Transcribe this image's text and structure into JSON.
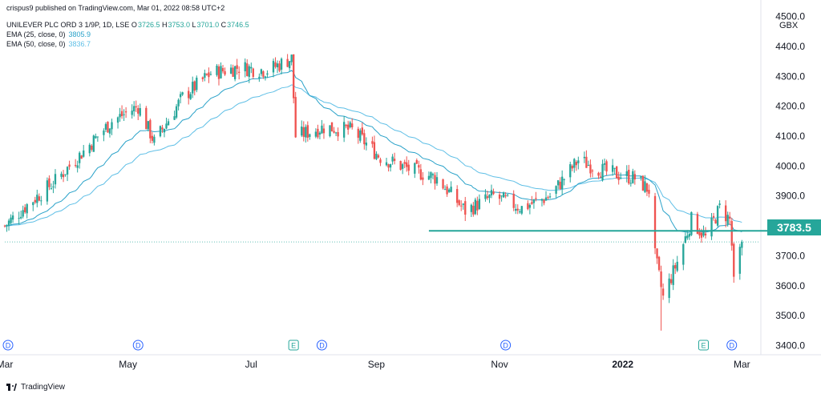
{
  "header": {
    "publisher": "crispus9 published on TradingView.com, Mar 01, 2022 08:58 UTC+2",
    "symbol": "UNILEVER PLC ORD 3 1/9P, 1D, LSE",
    "ohlc": {
      "o_label": "O",
      "o": "3726.5",
      "h_label": "H",
      "h": "3753.0",
      "l_label": "L",
      "l": "3701.0",
      "c_label": "C",
      "c": "3746.5"
    },
    "ema25": {
      "label": "EMA (25, close, 0)",
      "value": "3805.9"
    },
    "ema50": {
      "label": "EMA (50, close, 0)",
      "value": "3836.7"
    }
  },
  "footer": {
    "brand": "TradingView"
  },
  "colors": {
    "up": "#26a69a",
    "down": "#ef5350",
    "ema25": "#2aa2c9",
    "ema50": "#5fbfe6",
    "support": "#26a69a",
    "event_marker": "#2962ff",
    "earnings_marker": "#26a69a"
  },
  "chart_data": {
    "type": "candlestick",
    "currency": "GBX",
    "y_ticks": [
      4500,
      4400,
      4300,
      4200,
      4100,
      4000,
      3900,
      3800,
      3700,
      3600,
      3500,
      3400
    ],
    "y_tick_labels": [
      "4500.0",
      "4400.0",
      "4300.0",
      "4200.0",
      "4100.0",
      "4000.0",
      "3900.0",
      "3800.0",
      "3700.0",
      "3600.0",
      "3500.0",
      "3400.0"
    ],
    "ylim": [
      3380,
      4500
    ],
    "x_labels": [
      {
        "text": "Mar",
        "date": "2021-03-01",
        "bold": false
      },
      {
        "text": "May",
        "date": "2021-05-01",
        "bold": false
      },
      {
        "text": "Jul",
        "date": "2021-07-01",
        "bold": false
      },
      {
        "text": "Sep",
        "date": "2021-09-01",
        "bold": false
      },
      {
        "text": "Nov",
        "date": "2021-11-01",
        "bold": false
      },
      {
        "text": "2022",
        "date": "2022-01-01",
        "bold": true
      },
      {
        "text": "Mar",
        "date": "2022-03-01",
        "bold": false
      }
    ],
    "x_range": [
      "2021-03-01",
      "2022-03-10"
    ],
    "support_level": {
      "value": 3783.5,
      "label": "3783.5",
      "from_date": "2021-09-27"
    },
    "last_close": 3746.5,
    "markers": [
      {
        "date": "2021-03-01",
        "kind": "D"
      },
      {
        "date": "2021-05-06",
        "kind": "D"
      },
      {
        "date": "2021-07-22",
        "kind": "E"
      },
      {
        "date": "2021-08-05",
        "kind": "D"
      },
      {
        "date": "2021-11-04",
        "kind": "D"
      },
      {
        "date": "2022-02-10",
        "kind": "E"
      },
      {
        "date": "2022-02-24",
        "kind": "D"
      }
    ],
    "candle_count": 260,
    "close_path": [
      [
        "2021-03-01",
        3800
      ],
      [
        "2021-03-12",
        3870
      ],
      [
        "2021-03-26",
        3950
      ],
      [
        "2021-04-09",
        4050
      ],
      [
        "2021-04-23",
        4150
      ],
      [
        "2021-05-06",
        4200
      ],
      [
        "2021-05-14",
        4080
      ],
      [
        "2021-05-28",
        4230
      ],
      [
        "2021-06-11",
        4310
      ],
      [
        "2021-06-25",
        4330
      ],
      [
        "2021-07-09",
        4320
      ],
      [
        "2021-07-21",
        4360
      ],
      [
        "2021-07-23",
        4100
      ],
      [
        "2021-08-06",
        4130
      ],
      [
        "2021-08-20",
        4120
      ],
      [
        "2021-09-03",
        4030
      ],
      [
        "2021-09-17",
        3990
      ],
      [
        "2021-10-01",
        3960
      ],
      [
        "2021-10-15",
        3850
      ],
      [
        "2021-10-29",
        3900
      ],
      [
        "2021-11-12",
        3860
      ],
      [
        "2021-11-26",
        3900
      ],
      [
        "2021-12-10",
        4020
      ],
      [
        "2021-12-24",
        3980
      ],
      [
        "2022-01-07",
        3960
      ],
      [
        "2022-01-14",
        3920
      ],
      [
        "2022-01-17",
        3700
      ],
      [
        "2022-01-21",
        3560
      ],
      [
        "2022-01-28",
        3680
      ],
      [
        "2022-02-04",
        3820
      ],
      [
        "2022-02-11",
        3760
      ],
      [
        "2022-02-18",
        3860
      ],
      [
        "2022-02-23",
        3820
      ],
      [
        "2022-02-25",
        3650
      ],
      [
        "2022-03-01",
        3746.5
      ]
    ]
  }
}
